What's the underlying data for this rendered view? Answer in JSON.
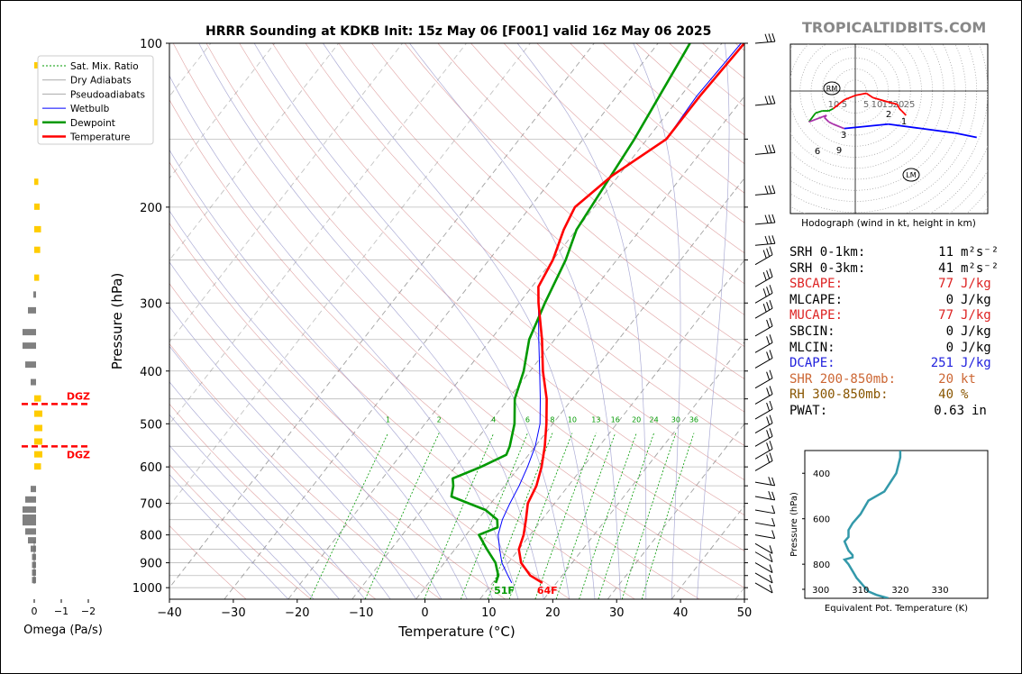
{
  "title": "HRRR Sounding at KDKB Init: 15z May 06 [F001] valid 16z May 06 2025",
  "brand": "TROPICALTIDBITS.COM",
  "colors": {
    "temperature": "#ff0000",
    "dewpoint": "#009900",
    "wetbulb": "#0000ff",
    "dgz": "#ff0000",
    "omega_up": "#ffcc00",
    "omega_down": "#808080",
    "eqpt": "#3399aa",
    "mixratio": "#009900",
    "dry": "#999999",
    "moist": "#9999cc"
  },
  "legend": [
    "Sat. Mix. Ratio",
    "Dry Adiabats",
    "Pseudoadiabats",
    "Wetbulb",
    "Dewpoint",
    "Temperature"
  ],
  "omega": {
    "xlabel": "Omega (Pa/s)",
    "ticks": [
      "0",
      "−1",
      "−2"
    ],
    "dgz_label": "DGZ"
  },
  "skewt": {
    "xlabel": "Temperature (°C)",
    "ylabel": "Pressure (hPa)",
    "xticks": [
      "−40",
      "−30",
      "−20",
      "−10",
      "0",
      "10",
      "20",
      "30",
      "40",
      "50"
    ],
    "yticks": [
      "100",
      "200",
      "300",
      "400",
      "500",
      "600",
      "700",
      "800",
      "900",
      "1000"
    ],
    "mixing_ratio_labels": [
      "1",
      "2",
      "4",
      "6",
      "8",
      "10",
      "13",
      "16",
      "20",
      "24",
      "30",
      "36"
    ],
    "surface_temp_label": "64F",
    "surface_dew_label": "51F"
  },
  "hodograph": {
    "caption": "Hodograph (wind in kt, height in km)",
    "ring_labels": [
      "10",
      "5",
      "5",
      "10",
      "15",
      "20",
      "25"
    ],
    "markers": [
      "RM",
      "LM"
    ],
    "height_labels": [
      "1",
      "2",
      "3",
      "6",
      "9"
    ]
  },
  "stats": [
    {
      "label": "SRH 0-1km:",
      "value": "11",
      "unit": "m²s⁻²",
      "color": "#000000"
    },
    {
      "label": "SRH 0-3km:",
      "value": "41",
      "unit": "m²s⁻²",
      "color": "#000000"
    },
    {
      "label": "SBCAPE:",
      "value": "77",
      "unit": "J/kg",
      "color": "#dd2222"
    },
    {
      "label": "MLCAPE:",
      "value": "0",
      "unit": "J/kg",
      "color": "#000000"
    },
    {
      "label": "MUCAPE:",
      "value": "77",
      "unit": "J/kg",
      "color": "#dd2222"
    },
    {
      "label": "SBCIN:",
      "value": "0",
      "unit": "J/kg",
      "color": "#000000"
    },
    {
      "label": "MLCIN:",
      "value": "0",
      "unit": "J/kg",
      "color": "#000000"
    },
    {
      "label": "DCAPE:",
      "value": "251",
      "unit": "J/kg",
      "color": "#2222dd"
    },
    {
      "label": "SHR 200-850mb:",
      "value": "20",
      "unit": "kt",
      "color": "#cc6633"
    },
    {
      "label": "RH 300-850mb:",
      "value": "40",
      "unit": "%",
      "color": "#885500"
    },
    {
      "label": "PWAT:",
      "value": "0.63",
      "unit": "in",
      "color": "#000000"
    }
  ],
  "eqpt_panel": {
    "xlabel": "Equivalent Pot. Temperature (K)",
    "ylabel": "Pressure (hPa)",
    "xticks": [
      "300",
      "310",
      "320",
      "330"
    ],
    "yticks": [
      "400",
      "600",
      "800"
    ]
  },
  "chart_data": [
    {
      "type": "line",
      "title": "HRRR Sounding at KDKB Init: 15z May 06 [F001] valid 16z May 06 2025",
      "xlabel": "Temperature (°C)",
      "ylabel": "Pressure (hPa)",
      "xlim": [
        -40,
        50
      ],
      "ylim": [
        1050,
        100
      ],
      "yscale": "log",
      "series": [
        {
          "name": "Temperature",
          "p": [
            980,
            950,
            900,
            850,
            800,
            750,
            700,
            650,
            600,
            550,
            500,
            450,
            400,
            350,
            300,
            280,
            250,
            220,
            200,
            175,
            150,
            125,
            100
          ],
          "t": [
            17.8,
            15,
            12,
            10,
            9,
            7.5,
            5.8,
            5,
            3.5,
            1.5,
            -1,
            -4,
            -8,
            -12,
            -17,
            -19,
            -20,
            -22,
            -23,
            -21,
            -17,
            -17,
            -16.5
          ]
        },
        {
          "name": "Dewpoint",
          "p": [
            980,
            950,
            900,
            850,
            800,
            775,
            750,
            720,
            680,
            650,
            630,
            600,
            570,
            550,
            500,
            450,
            400,
            350,
            300,
            250,
            220,
            150,
            100
          ],
          "t": [
            10.5,
            10,
            8,
            5,
            2,
            4,
            3,
            0,
            -7,
            -8,
            -9,
            -6,
            -3.5,
            -4,
            -6,
            -9,
            -11,
            -14,
            -16,
            -18,
            -20,
            -22,
            -25
          ]
        },
        {
          "name": "Wetbulb",
          "p": [
            980,
            950,
            900,
            850,
            800,
            750,
            700,
            650,
            600,
            550,
            500,
            450,
            400,
            350,
            300,
            280,
            250,
            220,
            200,
            175,
            150,
            125,
            100
          ],
          "t": [
            13,
            11.5,
            9,
            7,
            5,
            3.8,
            3,
            2.3,
            1.3,
            0,
            -2,
            -5,
            -8.5,
            -12.5,
            -17,
            -19,
            -20,
            -22,
            -23,
            -21,
            -17,
            -17.5,
            -17
          ]
        }
      ]
    },
    {
      "type": "bar",
      "title": "",
      "xlabel": "Omega (Pa/s)",
      "xlim": [
        0,
        -2
      ],
      "p": [
        110,
        140,
        180,
        200,
        220,
        240,
        270,
        290,
        310,
        340,
        360,
        390,
        420,
        450,
        480,
        510,
        540,
        570,
        600,
        660,
        690,
        720,
        745,
        760,
        790,
        820,
        850,
        880,
        910,
        940,
        970
      ],
      "values": [
        -0.05,
        -0.05,
        -0.05,
        -0.1,
        -0.15,
        -0.12,
        -0.08,
        0,
        0.2,
        0.4,
        0.4,
        0.3,
        0.1,
        -0.15,
        -0.2,
        -0.2,
        -0.2,
        -0.2,
        -0.15,
        0.1,
        0.3,
        0.4,
        0.4,
        0.4,
        0.3,
        0.2,
        0.1,
        0.05,
        0.05,
        0.05,
        0.05
      ]
    },
    {
      "type": "line",
      "title": "",
      "xlabel": "Equivalent Pot. Temperature (K)",
      "ylabel": "Pressure (hPa)",
      "xlim": [
        296,
        342
      ],
      "ylim": [
        950,
        300
      ],
      "theta_e": [
        317,
        314,
        312,
        311,
        310,
        309,
        308,
        307,
        306,
        308,
        308,
        307,
        306,
        307,
        307,
        308,
        310,
        312,
        316,
        319,
        320,
        320
      ],
      "p": [
        950,
        935,
        920,
        900,
        880,
        860,
        830,
        800,
        780,
        770,
        760,
        740,
        700,
        680,
        650,
        620,
        580,
        520,
        480,
        400,
        330,
        300
      ]
    },
    {
      "type": "line",
      "title": "Hodograph (wind in kt, height in km)",
      "u": [
        23,
        21,
        20,
        19,
        15,
        8,
        5,
        0,
        -5,
        -10,
        -12,
        -15,
        -18,
        -21,
        -13,
        -14,
        -12,
        -10,
        -5,
        15,
        30,
        45,
        55
      ],
      "v": [
        -11,
        -9,
        -8,
        -6,
        -5,
        -3,
        -1,
        -2,
        -4,
        -8,
        -9,
        -9,
        -10,
        -14,
        -11,
        -12,
        -14,
        -15,
        -17,
        -15,
        -17,
        -19,
        -21
      ],
      "markers": {
        "RM": [
          -11,
          -7
        ],
        "LM": [
          13,
          -23
        ]
      }
    }
  ]
}
